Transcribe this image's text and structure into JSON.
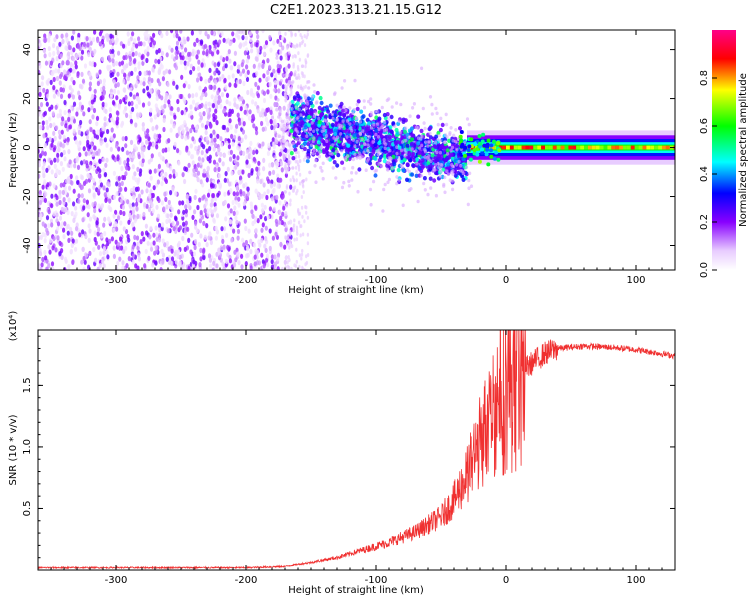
{
  "title": "C2E1.2023.313.21.15.G12",
  "chart_data": [
    {
      "type": "heatmap",
      "xlabel": "Height of straight line (km)",
      "ylabel": "Frequency (Hz)",
      "xlim": [
        -360,
        130
      ],
      "ylim": [
        -50,
        48
      ],
      "xticks": [
        -300,
        -200,
        -100,
        0,
        100
      ],
      "yticks": [
        -40,
        -20,
        0,
        20,
        40
      ],
      "colorbar": {
        "label": "Normalized spectral amplitude",
        "range": [
          0.0,
          1.0
        ],
        "ticks": [
          0.0,
          0.2,
          0.4,
          0.6,
          0.8
        ],
        "colormap": [
          "#ffffff",
          "#8800ff",
          "#0000ff",
          "#00ffff",
          "#00ff00",
          "#ffff00",
          "#ff0000",
          "#ff0088"
        ]
      },
      "regions": [
        {
          "x": [
            -360,
            -165
          ],
          "freq_spread": [
            -50,
            48
          ],
          "amplitude": 0.1
        },
        {
          "x": [
            -165,
            -30
          ],
          "center_freq": [
            10,
            -5
          ],
          "spread": 6,
          "amplitude": 0.3
        },
        {
          "x": [
            -30,
            130
          ],
          "center_freq": 0,
          "spread": 2,
          "amplitude": 0.85
        }
      ]
    },
    {
      "type": "line",
      "xlabel": "Height of straight line (km)",
      "ylabel": "SNR (10 * v/v)",
      "y_multiplier": "(x10⁴)",
      "xlim": [
        -360,
        130
      ],
      "ylim": [
        0,
        1.95
      ],
      "xticks": [
        -300,
        -200,
        -100,
        0,
        100
      ],
      "yticks": [
        0.5,
        1.0,
        1.5
      ],
      "series_color": "#f03030",
      "profile": [
        [
          -360,
          0.02
        ],
        [
          -300,
          0.02
        ],
        [
          -250,
          0.02
        ],
        [
          -200,
          0.02
        ],
        [
          -170,
          0.03
        ],
        [
          -150,
          0.06
        ],
        [
          -130,
          0.1
        ],
        [
          -110,
          0.16
        ],
        [
          -90,
          0.22
        ],
        [
          -70,
          0.3
        ],
        [
          -50,
          0.42
        ],
        [
          -40,
          0.55
        ],
        [
          -30,
          0.75
        ],
        [
          -20,
          1.0
        ],
        [
          -10,
          1.25
        ],
        [
          0,
          1.45
        ],
        [
          10,
          1.6
        ],
        [
          20,
          1.68
        ],
        [
          30,
          1.76
        ],
        [
          40,
          1.8
        ],
        [
          60,
          1.82
        ],
        [
          80,
          1.81
        ],
        [
          100,
          1.79
        ],
        [
          130,
          1.74
        ]
      ]
    }
  ]
}
